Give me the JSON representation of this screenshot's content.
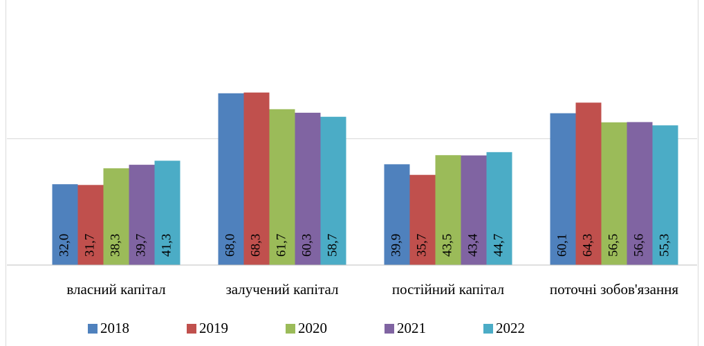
{
  "chart_data": {
    "type": "bar",
    "categories": [
      "власний капітал",
      "залучений капітал",
      "постійний капітал",
      "поточні зобов'язання"
    ],
    "series": [
      {
        "name": "2018",
        "color": "#4f81bd",
        "values": [
          32.0,
          68.0,
          39.9,
          60.1
        ],
        "value_labels": [
          "32,0",
          "68,0",
          "39,9",
          "60,1"
        ]
      },
      {
        "name": "2019",
        "color": "#c0504d",
        "values": [
          31.7,
          68.3,
          35.7,
          64.3
        ],
        "value_labels": [
          "31,7",
          "68,3",
          "35,7",
          "64,3"
        ]
      },
      {
        "name": "2020",
        "color": "#9bbb59",
        "values": [
          38.3,
          61.7,
          43.5,
          56.5
        ],
        "value_labels": [
          "38,3",
          "61,7",
          "43,5",
          "56,5"
        ]
      },
      {
        "name": "2021",
        "color": "#8064a2",
        "values": [
          39.7,
          60.3,
          43.4,
          56.6
        ],
        "value_labels": [
          "39,7",
          "60,3",
          "43,4",
          "56,6"
        ]
      },
      {
        "name": "2022",
        "color": "#4bacc6",
        "values": [
          41.3,
          58.7,
          44.7,
          55.3
        ],
        "value_labels": [
          "41,3",
          "58,7",
          "44,7",
          "55,3"
        ]
      }
    ],
    "ylim": [
      0,
      100
    ],
    "yticks": [
      0,
      50
    ],
    "grid": true,
    "legend": "bottom"
  }
}
